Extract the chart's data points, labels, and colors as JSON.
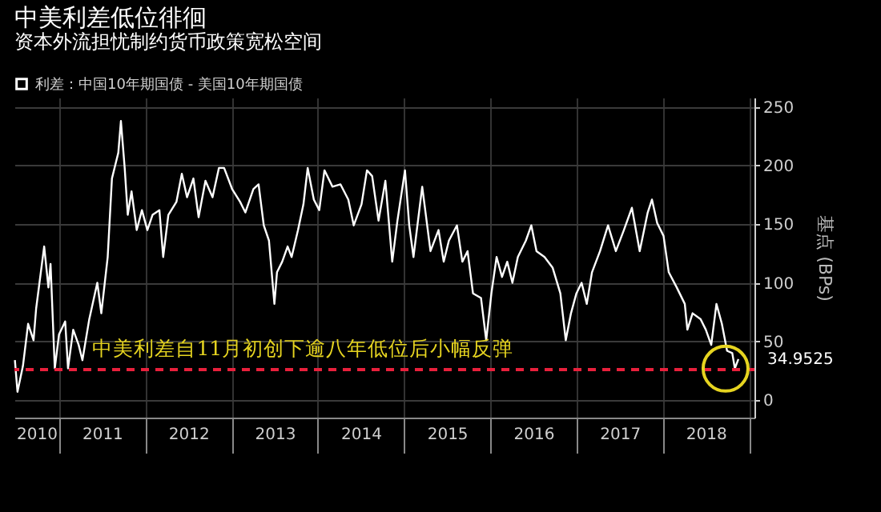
{
  "chart_data": {
    "type": "line",
    "title": "中美利差低位徘徊",
    "subtitle": "资本外流担忧制约货币政策宽松空间",
    "ylabel": "基点 (BPs)",
    "x": [
      "2010-06-28",
      "2010-07-09",
      "2010-08-01",
      "2010-08-23",
      "2010-09-15",
      "2010-09-26",
      "2010-10-30",
      "2010-11-17",
      "2010-11-26",
      "2010-12-14",
      "2011-01-01",
      "2011-01-27",
      "2011-02-08",
      "2011-03-02",
      "2011-03-25",
      "2011-04-10",
      "2011-05-09",
      "2011-06-12",
      "2011-06-29",
      "2011-07-26",
      "2011-08-13",
      "2011-08-29",
      "2011-09-09",
      "2011-09-20",
      "2011-10-06",
      "2011-10-19",
      "2011-11-04",
      "2011-11-26",
      "2011-12-18",
      "2012-01-10",
      "2012-02-01",
      "2012-03-01",
      "2012-03-17",
      "2012-04-08",
      "2012-05-12",
      "2012-06-04",
      "2012-06-26",
      "2012-07-23",
      "2012-08-14",
      "2012-09-12",
      "2012-10-12",
      "2012-11-08",
      "2012-11-30",
      "2013-01-03",
      "2013-02-06",
      "2013-02-28",
      "2013-04-03",
      "2013-04-25",
      "2013-05-17",
      "2013-06-08",
      "2013-07-01",
      "2013-07-12",
      "2013-08-03",
      "2013-08-26",
      "2013-09-12",
      "2013-10-09",
      "2013-11-01",
      "2013-11-19",
      "2013-12-15",
      "2014-01-07",
      "2014-01-29",
      "2014-03-04",
      "2014-04-07",
      "2014-05-10",
      "2014-06-02",
      "2014-07-05",
      "2014-07-28",
      "2014-08-19",
      "2014-09-15",
      "2014-10-14",
      "2014-11-12",
      "2014-12-04",
      "2015-01-05",
      "2015-01-23",
      "2015-02-10",
      "2015-03-19",
      "2015-04-23",
      "2015-05-27",
      "2015-06-18",
      "2015-07-10",
      "2015-08-13",
      "2015-09-05",
      "2015-09-27",
      "2015-10-20",
      "2015-11-23",
      "2015-12-15",
      "2016-01-06",
      "2016-01-28",
      "2016-02-20",
      "2016-03-13",
      "2016-04-04",
      "2016-04-27",
      "2016-05-31",
      "2016-06-23",
      "2016-07-15",
      "2016-08-18",
      "2016-09-21",
      "2016-10-24",
      "2016-11-16",
      "2016-12-08",
      "2016-12-31",
      "2017-01-22",
      "2017-02-13",
      "2017-03-07",
      "2017-04-10",
      "2017-05-14",
      "2017-06-16",
      "2017-07-20",
      "2017-08-23",
      "2017-09-25",
      "2017-10-29",
      "2017-11-16",
      "2017-12-08",
      "2018-01-04",
      "2018-01-26",
      "2018-03-01",
      "2018-04-04",
      "2018-04-15",
      "2018-05-07",
      "2018-06-10",
      "2018-07-02",
      "2018-07-25",
      "2018-08-16",
      "2018-09-08",
      "2018-09-30",
      "2018-10-22",
      "2018-11-02",
      "2018-11-17"
    ],
    "series": [
      {
        "name": "利差：中国10年期国债 - 美国10年期国债",
        "color": "#ffffff",
        "values": [
          34,
          7,
          29,
          65,
          51,
          78,
          131,
          96,
          116,
          27,
          56,
          67,
          27,
          60,
          47,
          34,
          69,
          100,
          74,
          122,
          189,
          202,
          211,
          238,
          198,
          158,
          178,
          145,
          162,
          145,
          158,
          162,
          122,
          158,
          169,
          193,
          173,
          189,
          156,
          187,
          173,
          198,
          198,
          180,
          169,
          160,
          180,
          184,
          149,
          136,
          82,
          109,
          118,
          131,
          122,
          145,
          167,
          198,
          171,
          162,
          196,
          182,
          184,
          171,
          149,
          167,
          196,
          191,
          153,
          187,
          118,
          153,
          196,
          149,
          122,
          182,
          127,
          145,
          118,
          136,
          149,
          118,
          127,
          91,
          87,
          51,
          91,
          122,
          105,
          118,
          100,
          122,
          136,
          149,
          127,
          122,
          113,
          91,
          51,
          74,
          91,
          100,
          82,
          109,
          127,
          149,
          127,
          145,
          164,
          127,
          160,
          171,
          151,
          140,
          109,
          96,
          82,
          60,
          74,
          69,
          60,
          47,
          82,
          65,
          42,
          40,
          27,
          34.9525
        ]
      }
    ],
    "xlim": [
      "2010-06-26",
      "2019-01-24"
    ],
    "xticks": [
      {
        "value": "2010-09-27",
        "label": "2010"
      },
      {
        "value": "2011-01-01",
        "label": null
      },
      {
        "value": "2011-07-02",
        "label": "2011"
      },
      {
        "value": "2012-01-01",
        "label": null
      },
      {
        "value": "2012-07-02",
        "label": "2012"
      },
      {
        "value": "2013-01-01",
        "label": null
      },
      {
        "value": "2013-07-02",
        "label": "2013"
      },
      {
        "value": "2014-01-01",
        "label": null
      },
      {
        "value": "2014-07-02",
        "label": "2014"
      },
      {
        "value": "2015-01-01",
        "label": null
      },
      {
        "value": "2015-07-02",
        "label": "2015"
      },
      {
        "value": "2016-01-01",
        "label": null
      },
      {
        "value": "2016-07-02",
        "label": "2016"
      },
      {
        "value": "2017-01-01",
        "label": null
      },
      {
        "value": "2017-07-02",
        "label": "2017"
      },
      {
        "value": "2018-01-01",
        "label": null
      },
      {
        "value": "2018-07-02",
        "label": "2018"
      },
      {
        "value": "2019-01-01",
        "label": null
      }
    ],
    "ylim": [
      -15,
      258
    ],
    "yticks": [
      0,
      50,
      100,
      150,
      200,
      250
    ],
    "ref_lines": [
      {
        "axis": "y",
        "value": 26,
        "label": "中美利差自11月初创下逾八年低位后小幅反弹",
        "color": "#e8203c",
        "line_style": "dashed"
      }
    ],
    "annotations": [
      {
        "text": "34.9525",
        "x": "2018-11-17",
        "y": 34.9525
      }
    ],
    "grid": true,
    "legend": "top left",
    "marker": "none",
    "line_style": "solid"
  }
}
